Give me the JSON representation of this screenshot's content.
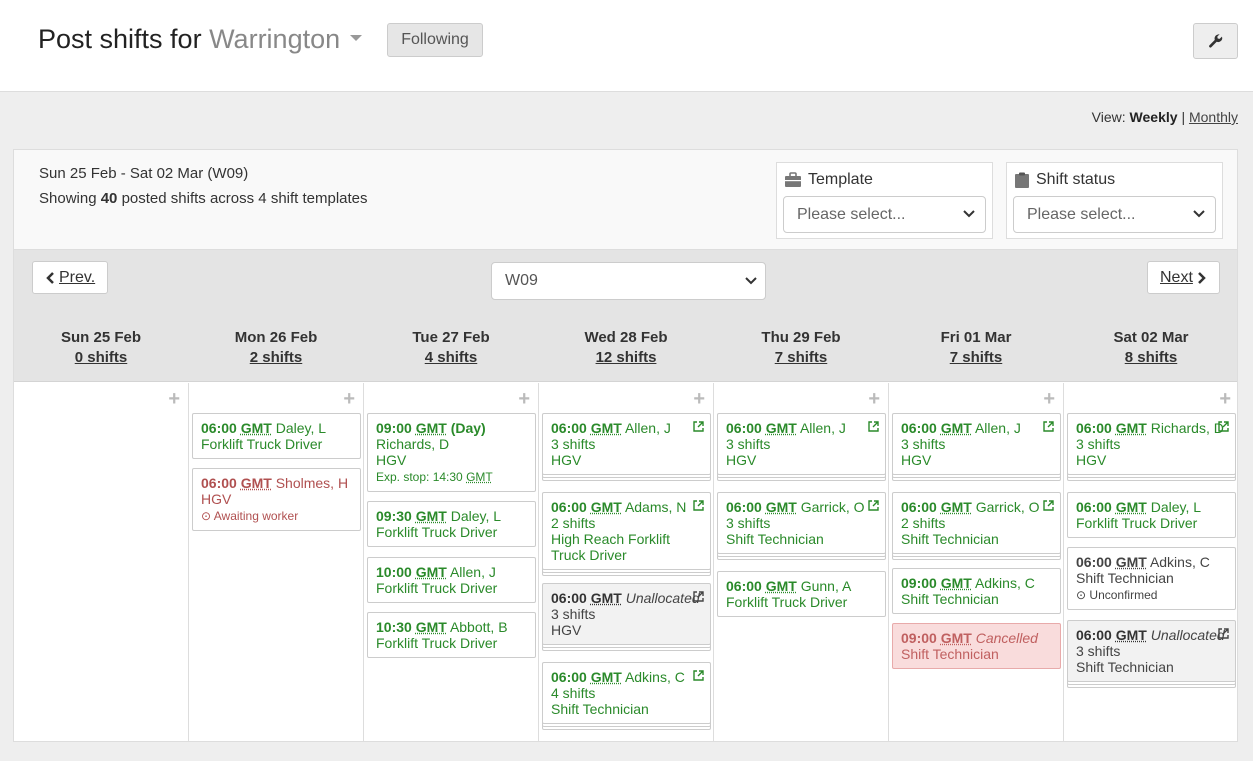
{
  "header": {
    "title_prefix": "Post shifts for",
    "location": "Warrington",
    "following_label": "Following"
  },
  "view": {
    "label": "View:",
    "weekly": "Weekly",
    "sep": "|",
    "monthly": "Monthly"
  },
  "summary": {
    "range": "Sun 25 Feb - Sat 02 Mar (W09)",
    "showing_pre": "Showing",
    "showing_count": "40",
    "showing_post": "posted shifts across 4 shift templates"
  },
  "filters": {
    "template": {
      "label": "Template",
      "placeholder": "Please select..."
    },
    "status": {
      "label": "Shift status",
      "placeholder": "Please select..."
    }
  },
  "nav": {
    "prev": "Prev.",
    "next": "Next",
    "week": "W09"
  },
  "days": [
    {
      "name": "Sun 25 Feb",
      "count": "0 shifts"
    },
    {
      "name": "Mon 26 Feb",
      "count": "2 shifts"
    },
    {
      "name": "Tue 27 Feb",
      "count": "4 shifts"
    },
    {
      "name": "Wed 28 Feb",
      "count": "12 shifts"
    },
    {
      "name": "Thu 29 Feb",
      "count": "7 shifts"
    },
    {
      "name": "Fri 01 Mar",
      "count": "7 shifts"
    },
    {
      "name": "Sat 02 Mar",
      "count": "8 shifts"
    }
  ],
  "cards": {
    "mon": [
      {
        "time": "06:00",
        "tz": "GMT",
        "who": "Daley, L",
        "role": "Forklift Truck Driver"
      },
      {
        "time": "06:00",
        "tz": "GMT",
        "who": "Sholmes, H",
        "role": "HGV",
        "note": "Awaiting worker"
      }
    ],
    "tue": [
      {
        "time": "09:00",
        "tz": "GMT",
        "who": "(Day)",
        "line2": "Richards, D",
        "role": "HGV",
        "note_pre": "Exp. stop: 14:30",
        "note_tz": "GMT"
      },
      {
        "time": "09:30",
        "tz": "GMT",
        "who": "Daley, L",
        "role": "Forklift Truck Driver"
      },
      {
        "time": "10:00",
        "tz": "GMT",
        "who": "Allen, J",
        "role": "Forklift Truck Driver"
      },
      {
        "time": "10:30",
        "tz": "GMT",
        "who": "Abbott, B",
        "role": "Forklift Truck Driver"
      }
    ],
    "wed": [
      {
        "time": "06:00",
        "tz": "GMT",
        "who": "Allen, J",
        "count": "3 shifts",
        "role": "HGV"
      },
      {
        "time": "06:00",
        "tz": "GMT",
        "who": "Adams, N",
        "count": "2 shifts",
        "role": "High Reach Forklift Truck Driver"
      },
      {
        "time": "06:00",
        "tz": "GMT",
        "who": "Unallocated",
        "count": "3 shifts",
        "role": "HGV"
      },
      {
        "time": "06:00",
        "tz": "GMT",
        "who": "Adkins, C",
        "count": "4 shifts",
        "role": "Shift Technician"
      }
    ],
    "thu": [
      {
        "time": "06:00",
        "tz": "GMT",
        "who": "Allen, J",
        "count": "3 shifts",
        "role": "HGV"
      },
      {
        "time": "06:00",
        "tz": "GMT",
        "who": "Garrick, O",
        "count": "3 shifts",
        "role": "Shift Technician"
      },
      {
        "time": "06:00",
        "tz": "GMT",
        "who": "Gunn, A",
        "role": "Forklift Truck Driver"
      }
    ],
    "fri": [
      {
        "time": "06:00",
        "tz": "GMT",
        "who": "Allen, J",
        "count": "3 shifts",
        "role": "HGV"
      },
      {
        "time": "06:00",
        "tz": "GMT",
        "who": "Garrick, O",
        "count": "2 shifts",
        "role": "Shift Technician"
      },
      {
        "time": "09:00",
        "tz": "GMT",
        "who": "Adkins, C",
        "role": "Shift Technician"
      },
      {
        "time": "09:00",
        "tz": "GMT",
        "who": "Cancelled",
        "role": "Shift Technician"
      }
    ],
    "sat": [
      {
        "time": "06:00",
        "tz": "GMT",
        "who": "Richards, D",
        "count": "3 shifts",
        "role": "HGV"
      },
      {
        "time": "06:00",
        "tz": "GMT",
        "who": "Daley, L",
        "role": "Forklift Truck Driver"
      },
      {
        "time": "06:00",
        "tz": "GMT",
        "who": "Adkins, C",
        "role": "Shift Technician",
        "note": "Unconfirmed"
      },
      {
        "time": "06:00",
        "tz": "GMT",
        "who": "Unallocated",
        "count": "3 shifts",
        "role": "Shift Technician"
      }
    ]
  }
}
